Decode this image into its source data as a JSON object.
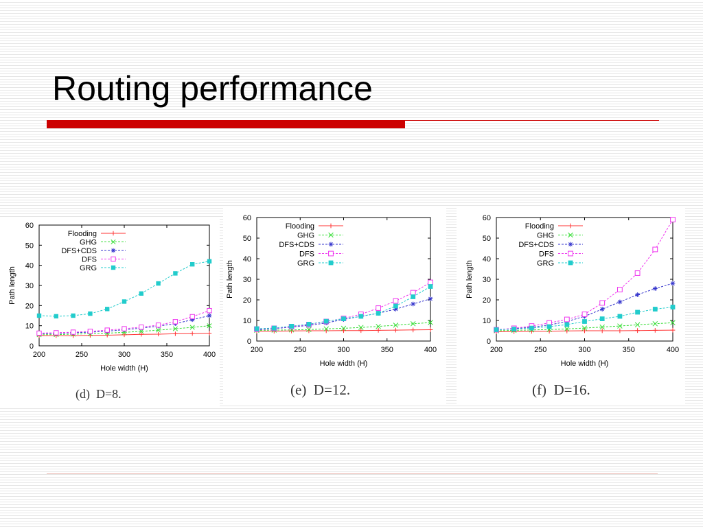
{
  "title": "Routing performance",
  "colors": {
    "accent_bar": "#cc0000"
  },
  "chart_data": [
    {
      "type": "line",
      "caption": "(d)  D=8.",
      "xlabel": "Hole width (H)",
      "ylabel": "Path length",
      "x_ticks": [
        200,
        250,
        300,
        350,
        400
      ],
      "y_ticks": [
        0,
        10,
        20,
        30,
        40,
        50,
        60
      ],
      "xlim": [
        200,
        400
      ],
      "ylim": [
        0,
        60
      ],
      "legend_position": "top-left",
      "x": [
        200,
        220,
        240,
        260,
        280,
        300,
        320,
        340,
        360,
        380,
        400
      ],
      "series": [
        {
          "name": "Flooding",
          "color": "#ff3333",
          "marker": "plus",
          "values": [
            5,
            5,
            5,
            5.2,
            5.3,
            5.5,
            5.7,
            5.8,
            6,
            6.1,
            6.3
          ]
        },
        {
          "name": "GHG",
          "color": "#33dd33",
          "marker": "x",
          "values": [
            5.5,
            5.6,
            5.8,
            6,
            6.3,
            6.7,
            7.2,
            7.8,
            8.5,
            9.2,
            10
          ]
        },
        {
          "name": "DFS+CDS",
          "color": "#3333cc",
          "marker": "star",
          "values": [
            6,
            6.2,
            6.5,
            6.8,
            7.3,
            8,
            8.8,
            9.8,
            11,
            13,
            15
          ]
        },
        {
          "name": "DFS",
          "color": "#ee33ee",
          "marker": "square-open",
          "values": [
            6.3,
            6.5,
            6.8,
            7.2,
            7.8,
            8.5,
            9.3,
            10.3,
            12,
            14.5,
            17.5
          ]
        },
        {
          "name": "GRG",
          "color": "#22cccc",
          "marker": "square-filled",
          "values": [
            15,
            14.7,
            15,
            16,
            18.3,
            22,
            26,
            31,
            36,
            40.5,
            42
          ]
        }
      ]
    },
    {
      "type": "line",
      "caption": "(e)  D=12.",
      "xlabel": "Hole width (H)",
      "ylabel": "Path length",
      "x_ticks": [
        200,
        250,
        300,
        350,
        400
      ],
      "y_ticks": [
        0,
        10,
        20,
        30,
        40,
        50,
        60
      ],
      "xlim": [
        200,
        400
      ],
      "ylim": [
        0,
        60
      ],
      "legend_position": "top-left",
      "x": [
        200,
        220,
        240,
        260,
        280,
        300,
        320,
        340,
        360,
        380,
        400
      ],
      "series": [
        {
          "name": "Flooding",
          "color": "#ff3333",
          "marker": "plus",
          "values": [
            4.8,
            4.8,
            4.9,
            5,
            5,
            5.1,
            5.1,
            5.2,
            5.3,
            5.4,
            5.5
          ]
        },
        {
          "name": "GHG",
          "color": "#33dd33",
          "marker": "x",
          "values": [
            5.2,
            5.3,
            5.4,
            5.6,
            5.9,
            6.2,
            6.6,
            7.1,
            7.7,
            8.4,
            9
          ]
        },
        {
          "name": "DFS+CDS",
          "color": "#3333cc",
          "marker": "star",
          "values": [
            5.5,
            6,
            6.8,
            7.6,
            8.8,
            10.5,
            12,
            13.5,
            15.5,
            18,
            20.5
          ]
        },
        {
          "name": "DFS",
          "color": "#ee33ee",
          "marker": "square-open",
          "values": [
            5.8,
            6.2,
            7,
            8,
            9.5,
            11,
            13,
            16,
            19.5,
            23.5,
            28.5
          ]
        },
        {
          "name": "GRG",
          "color": "#22cccc",
          "marker": "square-filled",
          "values": [
            6,
            6.3,
            7.2,
            8.2,
            9.6,
            10.8,
            12,
            13.5,
            17,
            21.5,
            26.5
          ]
        }
      ]
    },
    {
      "type": "line",
      "caption": "(f)  D=16.",
      "xlabel": "Hole width (H)",
      "ylabel": "Path length",
      "x_ticks": [
        200,
        250,
        300,
        350,
        400
      ],
      "y_ticks": [
        0,
        10,
        20,
        30,
        40,
        50,
        60
      ],
      "xlim": [
        200,
        400
      ],
      "ylim": [
        0,
        60
      ],
      "legend_position": "top-left",
      "x": [
        200,
        220,
        240,
        260,
        280,
        300,
        320,
        340,
        360,
        380,
        400
      ],
      "series": [
        {
          "name": "Flooding",
          "color": "#ff3333",
          "marker": "plus",
          "values": [
            4.5,
            4.6,
            4.7,
            4.8,
            4.9,
            5,
            5,
            5,
            5.1,
            5.2,
            5.3
          ]
        },
        {
          "name": "GHG",
          "color": "#33dd33",
          "marker": "x",
          "values": [
            5,
            5.2,
            5.4,
            5.6,
            5.9,
            6.3,
            6.8,
            7.3,
            7.9,
            8.4,
            8.9
          ]
        },
        {
          "name": "DFS+CDS",
          "color": "#3333cc",
          "marker": "star",
          "values": [
            5.5,
            6,
            6.7,
            7.8,
            9.5,
            12,
            15.5,
            19,
            22.5,
            25.5,
            28
          ]
        },
        {
          "name": "DFS",
          "color": "#ee33ee",
          "marker": "square-open",
          "values": [
            5.5,
            6.2,
            7.3,
            8.8,
            10.5,
            13,
            18.5,
            25,
            33,
            44.5,
            59
          ]
        },
        {
          "name": "GRG",
          "color": "#22cccc",
          "marker": "square-filled",
          "values": [
            5.5,
            5.8,
            6.3,
            7,
            8,
            9.5,
            10.8,
            12,
            14,
            15.5,
            16.5
          ]
        }
      ]
    }
  ]
}
